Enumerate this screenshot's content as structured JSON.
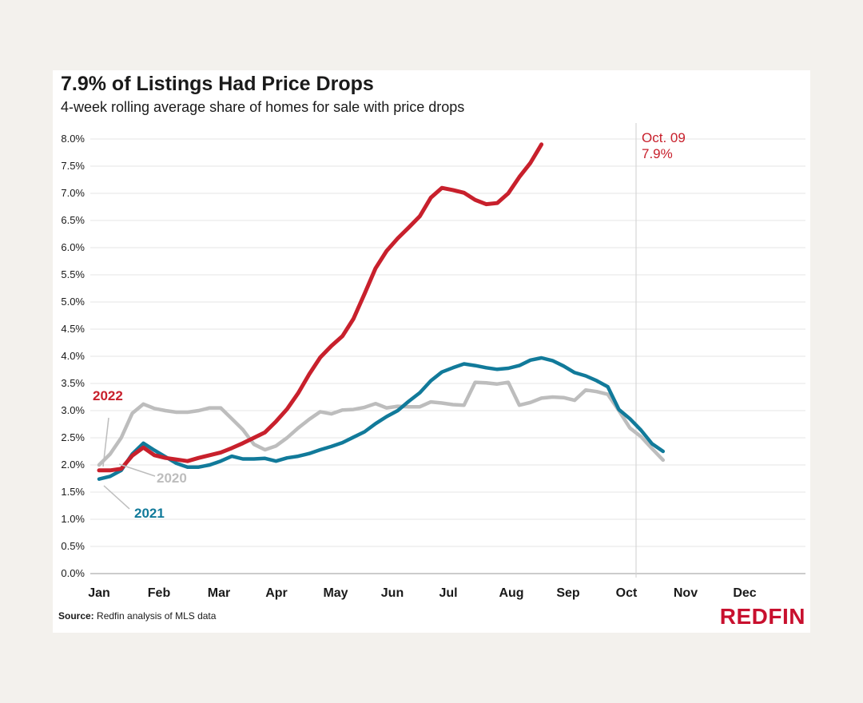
{
  "chart_data": {
    "type": "line",
    "title": "7.9% of Listings Had Price Drops",
    "subtitle": "4-week rolling average share of homes for sale with price drops",
    "categories": [
      "Jan",
      "Feb",
      "Mar",
      "Apr",
      "May",
      "Jun",
      "Jul",
      "Aug",
      "Sep",
      "Oct",
      "Nov",
      "Dec"
    ],
    "y_ticks": [
      "0.0%",
      "0.5%",
      "1.0%",
      "1.5%",
      "2.0%",
      "2.5%",
      "3.0%",
      "3.5%",
      "4.0%",
      "4.5%",
      "5.0%",
      "5.5%",
      "6.0%",
      "6.5%",
      "7.0%",
      "7.5%",
      "8.0%"
    ],
    "ylim": [
      0,
      8
    ],
    "x_unit": "week",
    "xlim": [
      0,
      52
    ],
    "grid": true,
    "series": [
      {
        "name": "2020",
        "color": "#bdbdbd",
        "x": [
          0,
          1,
          2,
          3,
          4,
          5,
          6,
          7,
          8,
          9,
          10,
          11,
          12,
          13,
          14,
          15,
          16,
          17,
          18,
          19,
          20,
          21,
          22,
          23,
          24,
          25,
          26,
          27,
          28,
          29,
          30,
          31,
          32,
          33,
          34,
          35,
          36,
          37,
          38,
          39,
          40,
          41,
          42,
          43,
          44,
          45,
          46,
          47,
          48,
          49,
          50,
          51
        ],
        "values": [
          2.0,
          2.2,
          2.5,
          2.95,
          3.12,
          3.04,
          3.0,
          2.97,
          2.97,
          3.0,
          3.05,
          3.05,
          2.85,
          2.65,
          2.38,
          2.28,
          2.35,
          2.5,
          2.68,
          2.84,
          2.98,
          2.94,
          3.01,
          3.02,
          3.06,
          3.13,
          3.05,
          3.08,
          3.07,
          3.07,
          3.16,
          3.14,
          3.11,
          3.1,
          3.52,
          3.51,
          3.49,
          3.52,
          3.1,
          3.15,
          3.23,
          3.25,
          3.24,
          3.19,
          3.38,
          3.35,
          3.3,
          3.0,
          2.68,
          2.52,
          2.3,
          2.09
        ]
      },
      {
        "name": "2021",
        "color": "#117a9a",
        "x": [
          0,
          1,
          2,
          3,
          4,
          5,
          6,
          7,
          8,
          9,
          10,
          11,
          12,
          13,
          14,
          15,
          16,
          17,
          18,
          19,
          20,
          21,
          22,
          23,
          24,
          25,
          26,
          27,
          28,
          29,
          30,
          31,
          32,
          33,
          34,
          35,
          36,
          37,
          38,
          39,
          40,
          41,
          42,
          43,
          44,
          45,
          46,
          47,
          48,
          49,
          50,
          51
        ],
        "values": [
          1.74,
          1.79,
          1.9,
          2.2,
          2.4,
          2.27,
          2.15,
          2.03,
          1.96,
          1.96,
          2.0,
          2.07,
          2.16,
          2.11,
          2.11,
          2.12,
          2.07,
          2.13,
          2.16,
          2.21,
          2.28,
          2.34,
          2.41,
          2.51,
          2.61,
          2.76,
          2.89,
          3.0,
          3.17,
          3.33,
          3.55,
          3.71,
          3.79,
          3.86,
          3.83,
          3.79,
          3.76,
          3.78,
          3.83,
          3.93,
          3.97,
          3.92,
          3.82,
          3.7,
          3.64,
          3.55,
          3.44,
          3.02,
          2.85,
          2.64,
          2.39,
          2.25
        ]
      },
      {
        "name": "2022",
        "color": "#c8202c",
        "x": [
          0,
          1,
          2,
          3,
          4,
          5,
          6,
          7,
          8,
          9,
          10,
          11,
          12,
          13,
          14,
          15,
          16,
          17,
          18,
          19,
          20,
          21,
          22,
          23,
          24,
          25,
          26,
          27,
          28,
          29,
          30,
          31,
          32,
          33,
          34,
          35,
          36,
          37,
          38,
          39,
          40
        ],
        "values": [
          1.9,
          1.9,
          1.93,
          2.17,
          2.32,
          2.18,
          2.13,
          2.1,
          2.07,
          2.13,
          2.18,
          2.23,
          2.31,
          2.4,
          2.5,
          2.6,
          2.8,
          3.03,
          3.32,
          3.67,
          3.98,
          4.19,
          4.37,
          4.69,
          5.15,
          5.62,
          5.94,
          6.17,
          6.37,
          6.58,
          6.92,
          7.1,
          7.06,
          7.01,
          6.88,
          6.8,
          6.82,
          7.0,
          7.3,
          7.56,
          7.9
        ]
      }
    ],
    "annotations": {
      "marker_date": "Oct. 09",
      "marker_value": "7.9%",
      "label_2022": "2022",
      "label_2021": "2021",
      "label_2020": "2020"
    }
  },
  "footer": {
    "source_prefix": "Source:",
    "source_text": " Redfin analysis of MLS data",
    "brand": "REDFIN"
  }
}
